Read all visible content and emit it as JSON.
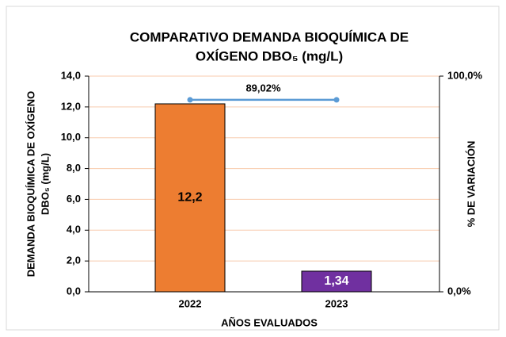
{
  "chart_data": {
    "type": "bar",
    "title": [
      "COMPARATIVO DEMANDA BIOQUÍMICA DE",
      "OXÍGENO DBO₅ (mg/L)"
    ],
    "x_label": "AÑOS EVALUADOS",
    "y_label": [
      "DEMANDA BIOQUÍMICA DE OXÍGENO",
      "DBO₅ (mg/L)"
    ],
    "y2_label": "% DE VARIACIÓN",
    "categories": [
      "2022",
      "2023"
    ],
    "series": [
      {
        "name": "DBO5",
        "type": "bar",
        "colors": [
          "#ED7D31",
          "#7030A0"
        ],
        "values": [
          12.2,
          1.34
        ],
        "value_labels": [
          "12,2",
          "1,34"
        ]
      },
      {
        "name": "% de variación",
        "type": "line",
        "axis": "y2",
        "color": "#5B9BD5",
        "values": [
          89.02,
          89.02
        ],
        "label": "89,02%"
      }
    ],
    "ylim": [
      0,
      14
    ],
    "yticks": [
      {
        "value": 0,
        "label": "0,0"
      },
      {
        "value": 2,
        "label": "2,0"
      },
      {
        "value": 4,
        "label": "4,0"
      },
      {
        "value": 6,
        "label": "6,0"
      },
      {
        "value": 8,
        "label": "8,0"
      },
      {
        "value": 10,
        "label": "10,0"
      },
      {
        "value": 12,
        "label": "12,0"
      },
      {
        "value": 14,
        "label": "14,0"
      }
    ],
    "y2lim": [
      0,
      100
    ],
    "y2ticks": [
      {
        "value": 0,
        "label": "0,0%"
      },
      {
        "value": 100,
        "label": "100,0%"
      }
    ],
    "grid": true
  }
}
